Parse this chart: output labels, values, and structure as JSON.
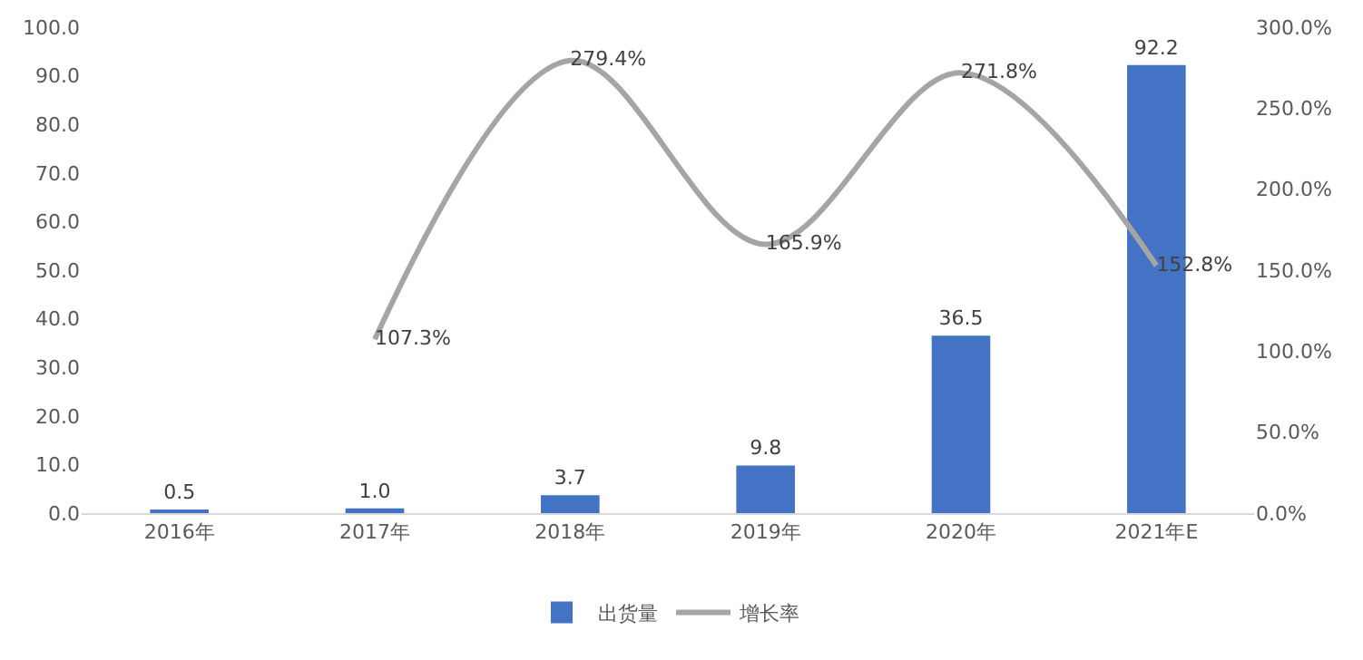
{
  "chart_data": {
    "type": "bar",
    "categories": [
      "2016年",
      "2017年",
      "2018年",
      "2019年",
      "2020年",
      "2021年E"
    ],
    "series": [
      {
        "name": "出货量",
        "color": "#4472c4",
        "values": [
          0.5,
          1.0,
          3.7,
          9.8,
          36.5,
          92.2
        ],
        "value_labels": [
          "0.5",
          "1.0",
          "3.7",
          "9.8",
          "36.5",
          "92.2"
        ]
      },
      {
        "name": "增长率",
        "type": "line",
        "axis": "y2",
        "color": "#a5a5a5",
        "values": [
          null,
          107.3,
          279.4,
          165.9,
          271.8,
          152.8
        ],
        "value_labels": [
          null,
          "107.3%",
          "279.4%",
          "165.9%",
          "271.8%",
          "152.8%"
        ]
      }
    ],
    "ylim": [
      0,
      100
    ],
    "yticks": [
      {
        "value": 0,
        "label": "0.0"
      },
      {
        "value": 10,
        "label": "10.0"
      },
      {
        "value": 20,
        "label": "20.0"
      },
      {
        "value": 30,
        "label": "30.0"
      },
      {
        "value": 40,
        "label": "40.0"
      },
      {
        "value": 50,
        "label": "50.0"
      },
      {
        "value": 60,
        "label": "60.0"
      },
      {
        "value": 70,
        "label": "70.0"
      },
      {
        "value": 80,
        "label": "80.0"
      },
      {
        "value": 90,
        "label": "90.0"
      },
      {
        "value": 100,
        "label": "100.0"
      }
    ],
    "y2lim": [
      0,
      300
    ],
    "y2ticks": [
      {
        "value": 0,
        "label": "0.0%"
      },
      {
        "value": 50,
        "label": "50.0%"
      },
      {
        "value": 100,
        "label": "100.0%"
      },
      {
        "value": 150,
        "label": "150.0%"
      },
      {
        "value": 200,
        "label": "200.0%"
      },
      {
        "value": 250,
        "label": "250.0%"
      },
      {
        "value": 300,
        "label": "300.0%"
      }
    ],
    "legend": "bottom",
    "grid": false,
    "marker": "none",
    "line_style": "solid"
  }
}
